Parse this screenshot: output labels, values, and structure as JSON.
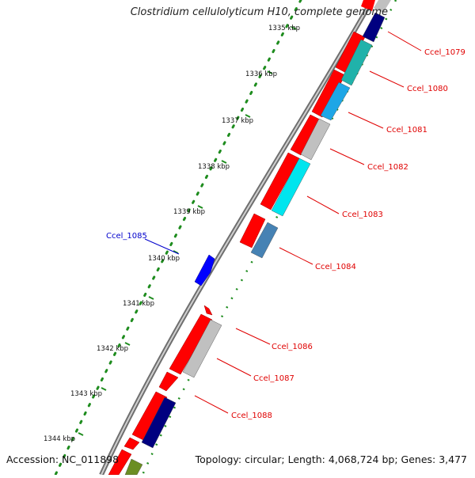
{
  "title": "Clostridium cellulolyticum H10, complete genome",
  "footer": {
    "accession": "Accession: NC_011898",
    "topology": "Topology: circular; Length: 4,068,724 bp; Genes: 3,477"
  },
  "ruler": {
    "ticks": [
      {
        "label": "1335 kbp"
      },
      {
        "label": "1336 kbp"
      },
      {
        "label": "1337 kbp"
      },
      {
        "label": "1338 kbp"
      },
      {
        "label": "1339 kbp"
      },
      {
        "label": "1340 kbp"
      },
      {
        "label": "1341 kbp"
      },
      {
        "label": "1342 kbp"
      },
      {
        "label": "1343 kbp"
      },
      {
        "label": "1344 kbp"
      }
    ]
  },
  "genes": [
    {
      "label": "Ccel_1079",
      "color": "#000080"
    },
    {
      "label": "Ccel_1080",
      "color": "#20B2AA"
    },
    {
      "label": "Ccel_1081",
      "color": "#1EA6E6"
    },
    {
      "label": "Ccel_1082",
      "color": "#C0C0C0"
    },
    {
      "label": "Ccel_1083",
      "color": "#00E5EE"
    },
    {
      "label": "Ccel_1084",
      "color": "#4682B4"
    },
    {
      "label": "Ccel_1085",
      "color": "#0000FF"
    },
    {
      "label": "Ccel_1086",
      "color": "#C0C0C0"
    },
    {
      "label": "Ccel_1087",
      "color": "#000080"
    },
    {
      "label": "Ccel_1088",
      "color": "#000080"
    }
  ],
  "colors": {
    "cds": "#FF0000",
    "backbone": "#808080",
    "dots": "#1E8C1E",
    "label_red": "#E00000",
    "label_blue": "#0000CC"
  }
}
